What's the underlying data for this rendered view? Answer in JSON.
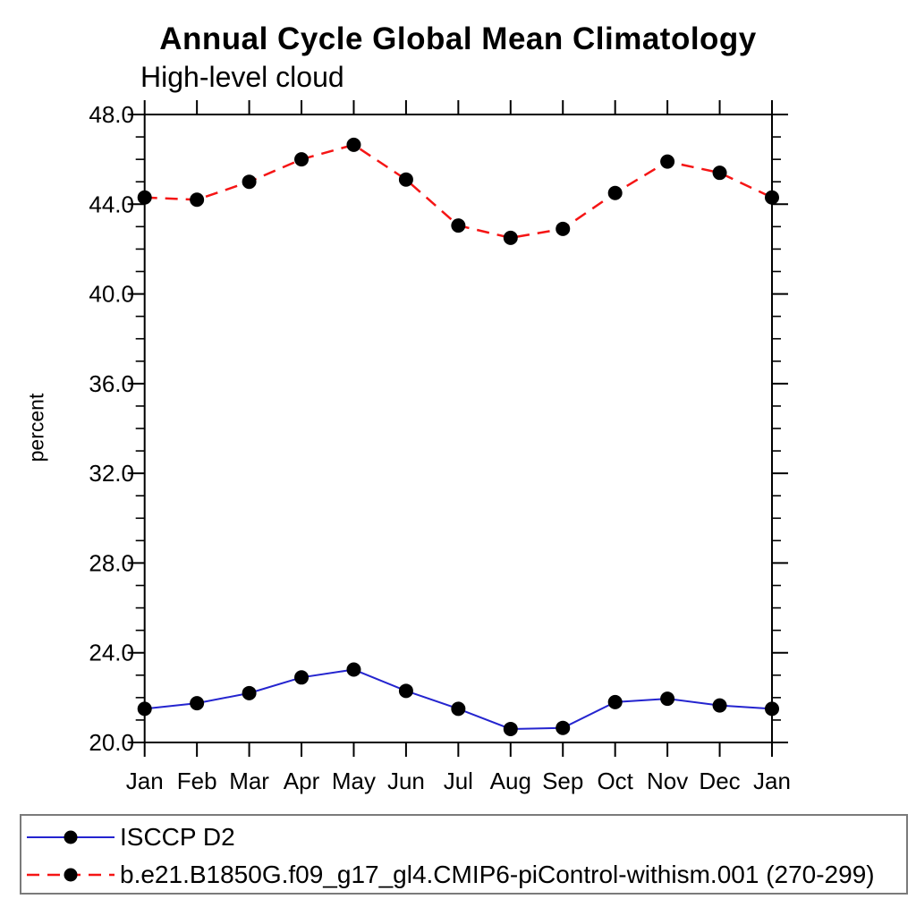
{
  "page": {
    "background": "#ffffff"
  },
  "chart_data": {
    "type": "line",
    "title": "Annual Cycle Global Mean Climatology",
    "subtitle": "High-level cloud",
    "ylabel": "percent",
    "xlabel": "",
    "categories": [
      "Jan",
      "Feb",
      "Mar",
      "Apr",
      "May",
      "Jun",
      "Jul",
      "Aug",
      "Sep",
      "Oct",
      "Nov",
      "Dec",
      "Jan"
    ],
    "ylim": [
      20.0,
      48.0
    ],
    "ytick_major_step": 4.0,
    "ytick_minor_step": 1.0,
    "ytick_labels": [
      "20.0",
      "24.0",
      "28.0",
      "32.0",
      "36.0",
      "40.0",
      "44.0",
      "48.0"
    ],
    "grid": false,
    "legend_position": "bottom-left-box",
    "axis_color": "#000000",
    "marker_color": "#000000",
    "legend_border_color": "#7a7a7a",
    "series": [
      {
        "name": "ISCCP D2",
        "color": "#2424cf",
        "line_style": "solid",
        "marker": "filled-circle",
        "values": [
          21.5,
          21.75,
          22.2,
          22.9,
          23.25,
          22.3,
          21.5,
          20.6,
          20.65,
          21.8,
          21.95,
          21.65,
          21.5
        ]
      },
      {
        "name": "b.e21.B1850G.f09_g17_gl4.CMIP6-piControl-withism.001 (270-299)",
        "color": "#f51515",
        "line_style": "dashed",
        "marker": "filled-circle",
        "values": [
          44.3,
          44.2,
          45.0,
          46.0,
          46.65,
          45.1,
          43.05,
          42.5,
          42.9,
          44.5,
          45.9,
          45.4,
          44.3
        ]
      }
    ]
  }
}
